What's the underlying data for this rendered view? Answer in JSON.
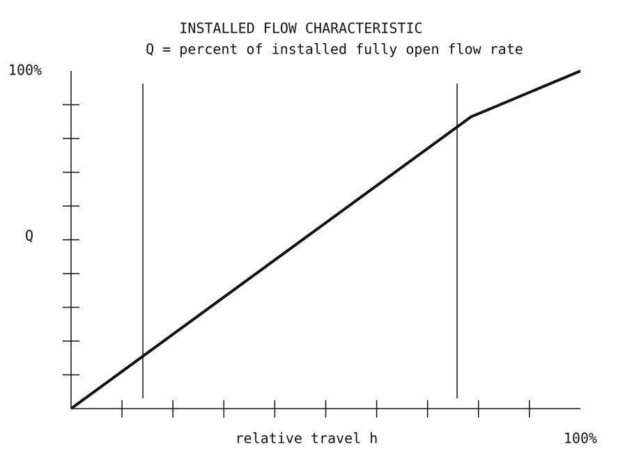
{
  "chart_data": {
    "type": "line",
    "title": "INSTALLED FLOW CHARACTERISTIC",
    "subtitle": "Q = percent of installed fully open flow rate",
    "xlabel": "relative travel h",
    "ylabel": "Q",
    "x": [
      0,
      78.5,
      100
    ],
    "series": [
      {
        "values": [
          0,
          86.4,
          100
        ],
        "color": "#111111"
      }
    ],
    "vlines": [
      14.1,
      75.8
    ],
    "xlim": [
      0,
      100
    ],
    "ylim": [
      0,
      100
    ],
    "xticks": [
      {
        "value": 10,
        "label": null
      },
      {
        "value": 20,
        "label": null
      },
      {
        "value": 30,
        "label": null
      },
      {
        "value": 40,
        "label": null
      },
      {
        "value": 50,
        "label": null
      },
      {
        "value": 60,
        "label": null
      },
      {
        "value": 70,
        "label": null
      },
      {
        "value": 80,
        "label": null
      },
      {
        "value": 90,
        "label": null
      },
      {
        "value": 100,
        "label": "100%"
      }
    ],
    "yticks": [
      {
        "value": 10,
        "label": null
      },
      {
        "value": 20,
        "label": null
      },
      {
        "value": 30,
        "label": null
      },
      {
        "value": 40,
        "label": null
      },
      {
        "value": 50,
        "label": null
      },
      {
        "value": 60,
        "label": null
      },
      {
        "value": 70,
        "label": null
      },
      {
        "value": 80,
        "label": null
      },
      {
        "value": 90,
        "label": null
      },
      {
        "value": 100,
        "label": "100%"
      }
    ],
    "grid": false
  }
}
